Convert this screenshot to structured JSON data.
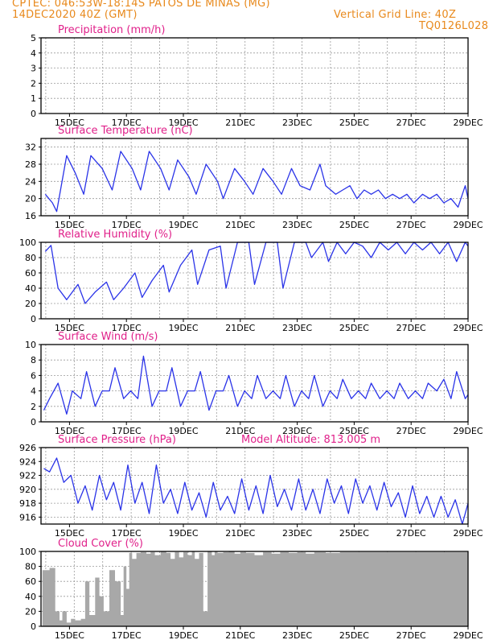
{
  "header": {
    "line1": "CPTEC:  046:53W-18:14S  PATOS DE MINAS (MG)",
    "line2_left": "14DEC2020 40Z (GMT)",
    "line2_right": "Vertical Grid Line: 40Z",
    "line3_right": "TQ0126L028"
  },
  "colors": {
    "title": "#e0208a",
    "header": "#e8891c",
    "line": "#2a33e8",
    "fill": "#a8a8a8",
    "arrow": "#000000"
  },
  "chart_data": [
    {
      "type": "bar",
      "title": "Precipitation (mm/h)",
      "ylim": [
        0,
        5
      ],
      "yticks": [
        0,
        1,
        2,
        3,
        4,
        5
      ],
      "xticks": [
        "15DEC",
        "17DEC",
        "19DEC",
        "21DEC",
        "23DEC",
        "25DEC",
        "27DEC",
        "29DEC"
      ],
      "grid": true,
      "x_start_day": 14.167,
      "step_hours": 1,
      "series": [
        {
          "values": []
        }
      ]
    },
    {
      "type": "line",
      "title": "Surface Temperature (nC)",
      "ylim": [
        16,
        34
      ],
      "yticks": [
        16,
        20,
        24,
        28,
        32
      ],
      "xticks": [
        "15DEC",
        "17DEC",
        "19DEC",
        "21DEC",
        "23DEC",
        "25DEC",
        "27DEC",
        "29DEC"
      ],
      "grid": true,
      "series": [
        {
          "x": [
            14.15,
            14.4,
            14.55,
            14.9,
            15.2,
            15.5,
            15.75,
            16.15,
            16.5,
            16.8,
            17.2,
            17.5,
            17.8,
            18.2,
            18.5,
            18.8,
            19.2,
            19.45,
            19.8,
            20.2,
            20.4,
            20.8,
            21.15,
            21.45,
            21.8,
            22.15,
            22.45,
            22.8,
            23.1,
            23.45,
            23.8,
            24.0,
            24.35,
            24.6,
            24.85,
            25.1,
            25.35,
            25.6,
            25.85,
            26.1,
            26.35,
            26.6,
            26.85,
            27.1,
            27.4,
            27.65,
            27.9,
            28.15,
            28.4,
            28.65,
            28.9,
            29.0
          ],
          "y": [
            21,
            19,
            17,
            30,
            26,
            21,
            30,
            27,
            22,
            31,
            27,
            22,
            31,
            27,
            22,
            29,
            25,
            21,
            28,
            24,
            20,
            27,
            24,
            21,
            27,
            24,
            21,
            27,
            23,
            22,
            28,
            23,
            21,
            22,
            23,
            20,
            22,
            21,
            22,
            20,
            21,
            20,
            21,
            19,
            21,
            20,
            21,
            19,
            20,
            18,
            23,
            20
          ]
        }
      ]
    },
    {
      "type": "line",
      "title": "Relative Humidity (%)",
      "ylim": [
        0,
        100
      ],
      "yticks": [
        0,
        20,
        40,
        60,
        80,
        100
      ],
      "xticks": [
        "15DEC",
        "17DEC",
        "19DEC",
        "21DEC",
        "23DEC",
        "25DEC",
        "27DEC",
        "29DEC"
      ],
      "grid": true,
      "series": [
        {
          "x": [
            14.15,
            14.35,
            14.6,
            14.9,
            15.3,
            15.55,
            15.9,
            16.3,
            16.55,
            16.9,
            17.3,
            17.55,
            17.9,
            18.3,
            18.5,
            18.9,
            19.3,
            19.5,
            19.9,
            20.3,
            20.5,
            20.9,
            21.3,
            21.5,
            21.9,
            22.3,
            22.5,
            22.9,
            23.3,
            23.5,
            23.9,
            24.1,
            24.4,
            24.7,
            25.0,
            25.3,
            25.6,
            25.9,
            26.2,
            26.5,
            26.8,
            27.1,
            27.4,
            27.7,
            28.0,
            28.3,
            28.6,
            28.9,
            29.0
          ],
          "y": [
            88,
            96,
            40,
            25,
            45,
            20,
            35,
            48,
            25,
            40,
            60,
            28,
            50,
            70,
            35,
            70,
            90,
            45,
            90,
            95,
            40,
            100,
            100,
            45,
            100,
            100,
            40,
            100,
            100,
            80,
            100,
            75,
            100,
            85,
            100,
            95,
            80,
            100,
            90,
            100,
            85,
            100,
            90,
            100,
            85,
            100,
            75,
            100,
            95
          ]
        }
      ]
    },
    {
      "type": "line",
      "title": "Surface Wind (m/s)",
      "ylim": [
        0,
        10
      ],
      "yticks": [
        0,
        2,
        4,
        6,
        8,
        10
      ],
      "xticks": [
        "15DEC",
        "17DEC",
        "19DEC",
        "21DEC",
        "23DEC",
        "25DEC",
        "27DEC",
        "29DEC"
      ],
      "grid": true,
      "series": [
        {
          "x": [
            14.1,
            14.3,
            14.6,
            14.9,
            15.1,
            15.4,
            15.6,
            15.9,
            16.15,
            16.4,
            16.6,
            16.9,
            17.15,
            17.4,
            17.6,
            17.9,
            18.15,
            18.4,
            18.6,
            18.9,
            19.15,
            19.4,
            19.6,
            19.9,
            20.15,
            20.4,
            20.6,
            20.9,
            21.15,
            21.4,
            21.6,
            21.9,
            22.15,
            22.4,
            22.6,
            22.9,
            23.15,
            23.4,
            23.6,
            23.9,
            24.15,
            24.4,
            24.6,
            24.9,
            25.15,
            25.4,
            25.6,
            25.9,
            26.15,
            26.4,
            26.6,
            26.9,
            27.15,
            27.4,
            27.6,
            27.9,
            28.15,
            28.4,
            28.6,
            28.9,
            29.0
          ],
          "y": [
            1.5,
            3,
            5,
            1,
            4,
            3,
            6.5,
            2,
            4,
            4,
            7,
            3,
            4,
            3,
            8.5,
            2,
            4,
            4,
            7,
            2,
            4,
            4,
            6.5,
            1.5,
            4,
            4,
            6,
            2,
            4,
            3,
            6,
            3,
            4,
            3,
            6,
            2,
            4,
            3,
            6,
            2,
            4,
            3,
            5.5,
            3,
            4,
            3,
            5,
            3,
            4,
            3,
            5,
            3,
            4,
            3,
            5,
            4,
            5.5,
            3,
            6.5,
            3,
            3.5
          ]
        }
      ],
      "arrows": []
    },
    {
      "type": "line",
      "title": "Surface Pressure (hPa)",
      "annotation": "Model Altitude: 813.005 m",
      "ylim": [
        915,
        926
      ],
      "yticks": [
        916,
        918,
        920,
        922,
        924,
        926
      ],
      "xticks": [
        "15DEC",
        "17DEC",
        "19DEC",
        "21DEC",
        "23DEC",
        "25DEC",
        "27DEC",
        "29DEC"
      ],
      "grid": true,
      "series": [
        {
          "x": [
            14.1,
            14.3,
            14.55,
            14.8,
            15.05,
            15.3,
            15.55,
            15.8,
            16.05,
            16.3,
            16.55,
            16.8,
            17.05,
            17.3,
            17.55,
            17.8,
            18.05,
            18.3,
            18.55,
            18.8,
            19.05,
            19.3,
            19.55,
            19.8,
            20.05,
            20.3,
            20.55,
            20.8,
            21.05,
            21.3,
            21.55,
            21.8,
            22.05,
            22.3,
            22.55,
            22.8,
            23.05,
            23.3,
            23.55,
            23.8,
            24.05,
            24.3,
            24.55,
            24.8,
            25.05,
            25.3,
            25.55,
            25.8,
            26.05,
            26.3,
            26.55,
            26.8,
            27.05,
            27.3,
            27.55,
            27.8,
            28.05,
            28.3,
            28.55,
            28.8,
            29.0
          ],
          "y": [
            923,
            922.5,
            924.5,
            921,
            922,
            918,
            920.5,
            917,
            922,
            918.5,
            921,
            917,
            923.5,
            918,
            921,
            916.5,
            923.5,
            918,
            920,
            916.5,
            921,
            917,
            919.5,
            916,
            921,
            917,
            919,
            916.5,
            921.5,
            917,
            920.5,
            916.5,
            922,
            917.5,
            920,
            917,
            921.5,
            917,
            920,
            916.5,
            921.5,
            918,
            920.5,
            916.5,
            921.5,
            918,
            920.5,
            917,
            921,
            917.5,
            919.5,
            916,
            920.5,
            916.5,
            919,
            916,
            919,
            916,
            918.5,
            915,
            918
          ]
        }
      ]
    },
    {
      "type": "area",
      "title": "Cloud Cover (%)",
      "ylim": [
        0,
        100
      ],
      "yticks": [
        0,
        20,
        40,
        60,
        80,
        100
      ],
      "xticks": [
        "15DEC",
        "17DEC",
        "19DEC",
        "21DEC",
        "23DEC",
        "25DEC",
        "27DEC",
        "29DEC"
      ],
      "grid": true,
      "series": [
        {
          "x": [
            14.05,
            14.3,
            14.5,
            14.65,
            14.75,
            14.9,
            15.05,
            15.2,
            15.4,
            15.55,
            15.7,
            15.9,
            16.05,
            16.2,
            16.4,
            16.6,
            16.8,
            16.9,
            17.0,
            17.1,
            17.2,
            17.35,
            17.5,
            17.7,
            17.85,
            18.0,
            18.2,
            18.4,
            18.55,
            18.7,
            18.85,
            19.0,
            19.15,
            19.3,
            19.4,
            19.55,
            19.7,
            19.85,
            20.0,
            20.1,
            20.2,
            20.4,
            20.6,
            20.8,
            21.0,
            21.2,
            21.5,
            21.8,
            22.1,
            22.4,
            22.7,
            23.0,
            23.3,
            23.6,
            24.0,
            24.5,
            25.0,
            25.5,
            26.0,
            26.5,
            27.0,
            27.5,
            28.0,
            28.5,
            29.0
          ],
          "y": [
            75,
            78,
            20,
            8,
            20,
            5,
            10,
            8,
            10,
            60,
            15,
            65,
            40,
            20,
            75,
            60,
            15,
            80,
            50,
            98,
            90,
            98,
            99,
            97,
            99,
            95,
            100,
            98,
            90,
            99,
            92,
            99,
            95,
            100,
            90,
            98,
            20,
            100,
            95,
            100,
            98,
            99,
            100,
            97,
            99,
            98,
            95,
            99,
            97,
            99,
            98,
            99,
            97,
            99,
            98,
            99,
            99,
            99,
            99,
            99,
            99,
            99,
            99,
            99,
            99
          ]
        }
      ]
    }
  ]
}
